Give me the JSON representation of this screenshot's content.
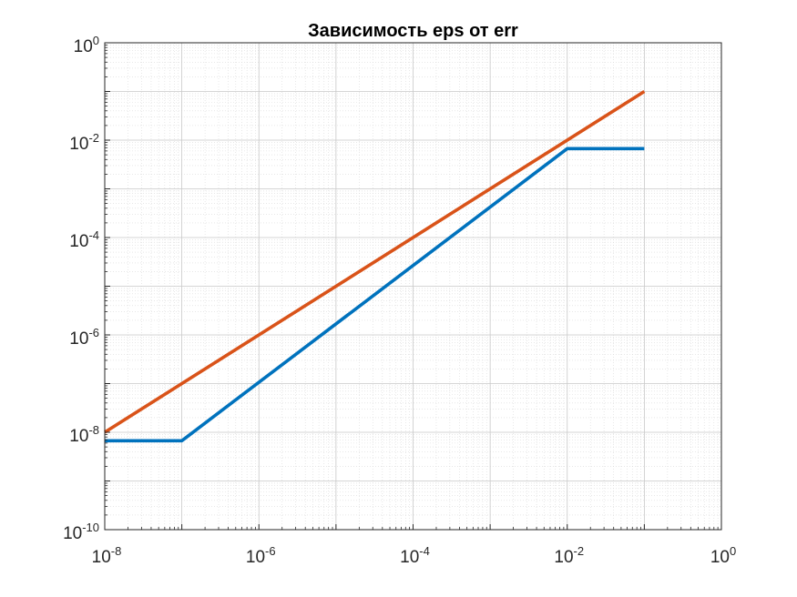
{
  "chart_data": {
    "type": "line",
    "title": "Зависимость eps от err",
    "xlabel": "",
    "ylabel": "",
    "xscale": "log",
    "yscale": "log",
    "xlim": [
      1e-08,
      1
    ],
    "ylim": [
      1e-10,
      1
    ],
    "grid": true,
    "minor_grid": true,
    "legend": "none",
    "x_ticks": [
      {
        "base": "10",
        "exp": "-8",
        "value": 1e-08
      },
      {
        "base": "10",
        "exp": "-6",
        "value": 1e-06
      },
      {
        "base": "10",
        "exp": "-4",
        "value": 0.0001
      },
      {
        "base": "10",
        "exp": "-2",
        "value": 0.01
      },
      {
        "base": "10",
        "exp": "0",
        "value": 1
      }
    ],
    "y_ticks": [
      {
        "base": "10",
        "exp": "-10",
        "value": 1e-10
      },
      {
        "base": "10",
        "exp": "-8",
        "value": 1e-08
      },
      {
        "base": "10",
        "exp": "-6",
        "value": 1e-06
      },
      {
        "base": "10",
        "exp": "-4",
        "value": 0.0001
      },
      {
        "base": "10",
        "exp": "-2",
        "value": 0.01
      },
      {
        "base": "10",
        "exp": "0",
        "value": 1
      }
    ],
    "series": [
      {
        "color": "#0072bd",
        "x": [
          1e-08,
          1e-07,
          0.01,
          0.1
        ],
        "y": [
          6.7e-09,
          6.7e-09,
          0.0067,
          0.0067
        ]
      },
      {
        "color": "#d95319",
        "x": [
          1e-08,
          0.1
        ],
        "y": [
          1e-08,
          0.1
        ]
      }
    ]
  }
}
